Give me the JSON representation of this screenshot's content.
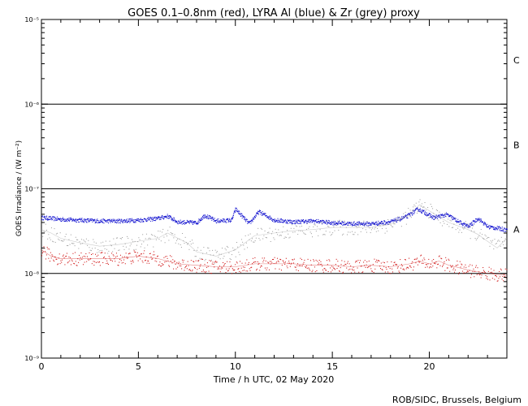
{
  "chart_data": {
    "type": "scatter",
    "title": "GOES 0.1–0.8nm (red), LYRA Al (blue) & Zr (grey) proxy",
    "xlabel": "Time / h UTC, 02 May 2020",
    "ylabel": "GOES Irradiance / (W m⁻²)",
    "credit": "ROB/SIDC, Brussels, Belgium",
    "xlim": [
      0,
      24
    ],
    "ylim": [
      1e-09,
      1e-05
    ],
    "y_scale": "log",
    "x_ticks": [
      0,
      5,
      10,
      15,
      20
    ],
    "y_ticks": [
      {
        "value": 1e-09,
        "label": "10⁻⁹"
      },
      {
        "value": 1e-08,
        "label": "10⁻⁸"
      },
      {
        "value": 1e-07,
        "label": "10⁻⁷"
      },
      {
        "value": 1e-06,
        "label": "10⁻⁶"
      },
      {
        "value": 1e-05,
        "label": "10⁻⁵"
      }
    ],
    "flare_class_lines": [
      1e-08,
      1e-07,
      1e-06
    ],
    "flare_classes": [
      {
        "label": "A",
        "value": 3.3e-08
      },
      {
        "label": "B",
        "value": 3.3e-07
      },
      {
        "label": "C",
        "value": 3.3e-06
      }
    ],
    "series": [
      {
        "name": "LYRA Al proxy",
        "color": "#0000cc",
        "x": [
          0,
          1,
          2,
          3,
          4,
          5,
          6,
          6.5,
          7,
          8,
          8.4,
          9,
          9.8,
          10,
          10.7,
          11.2,
          12,
          13,
          14,
          15,
          16,
          17,
          18,
          18.8,
          19.4,
          19.8,
          20.2,
          20.9,
          21.5,
          22,
          22.5,
          23,
          24
        ],
        "y": [
          4.6e-08,
          4.4e-08,
          4.3e-08,
          4.2e-08,
          4.2e-08,
          4.3e-08,
          4.5e-08,
          4.8e-08,
          4.1e-08,
          4e-08,
          4.9e-08,
          4.2e-08,
          4.3e-08,
          5.8e-08,
          3.9e-08,
          5.4e-08,
          4.3e-08,
          4.1e-08,
          4.2e-08,
          4e-08,
          3.9e-08,
          3.9e-08,
          4.1e-08,
          4.7e-08,
          5.8e-08,
          5.2e-08,
          4.6e-08,
          5e-08,
          4.1e-08,
          3.6e-08,
          4.5e-08,
          3.6e-08,
          3.3e-08
        ]
      },
      {
        "name": "LYRA Zr proxy",
        "color": "#999999",
        "x": [
          0,
          0.5,
          1,
          2,
          3,
          4,
          5,
          6,
          6.5,
          7.5,
          8,
          9,
          10,
          11,
          12,
          13,
          14,
          15,
          16,
          17,
          18,
          19,
          19.5,
          20,
          21,
          22,
          22.5,
          23,
          23.5,
          24
        ],
        "y": [
          3.3e-08,
          3e-08,
          2.6e-08,
          2.3e-08,
          2.1e-08,
          2.2e-08,
          2.4e-08,
          2.6e-08,
          3e-08,
          2.3e-08,
          1.8e-08,
          1.6e-08,
          1.9e-08,
          2.8e-08,
          3e-08,
          3.2e-08,
          3.3e-08,
          3.5e-08,
          3.5e-08,
          3.5e-08,
          3.8e-08,
          5e-08,
          6.5e-08,
          5.5e-08,
          4e-08,
          3.3e-08,
          2.9e-08,
          2.4e-08,
          2e-08,
          2.6e-08
        ]
      },
      {
        "name": "GOES 0.1–0.8nm",
        "color": "#cc0000",
        "x": [
          0,
          0.5,
          1,
          2,
          3,
          4,
          5,
          6,
          7,
          8,
          9,
          10,
          11,
          12,
          13,
          14,
          15,
          16,
          17,
          18,
          19,
          19.5,
          20,
          20.5,
          21,
          22,
          23,
          24
        ],
        "y": [
          1.9e-08,
          1.6e-08,
          1.5e-08,
          1.5e-08,
          1.5e-08,
          1.5e-08,
          1.6e-08,
          1.5e-08,
          1.3e-08,
          1.25e-08,
          1.2e-08,
          1.2e-08,
          1.3e-08,
          1.3e-08,
          1.3e-08,
          1.25e-08,
          1.25e-08,
          1.2e-08,
          1.25e-08,
          1.2e-08,
          1.3e-08,
          1.4e-08,
          1.3e-08,
          1.4e-08,
          1.25e-08,
          1.1e-08,
          1e-08,
          9.5e-09
        ]
      }
    ]
  }
}
